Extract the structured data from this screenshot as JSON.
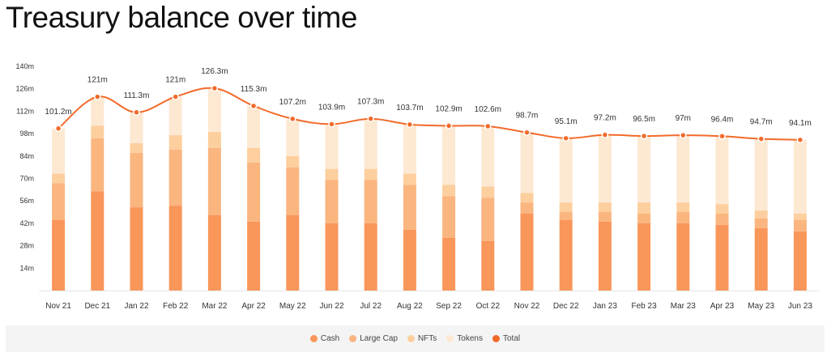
{
  "page": {
    "title": "Treasury balance over time"
  },
  "colors": {
    "cash": "#f9965a",
    "large_cap": "#fbb57f",
    "nfts": "#fdcf9e",
    "tokens": "#fde8d2",
    "total": "#f26a2a"
  },
  "legend": [
    {
      "label": "Cash",
      "color": "#f9965a"
    },
    {
      "label": "Large Cap",
      "color": "#fbb57f"
    },
    {
      "label": "NFTs",
      "color": "#fdcf9e"
    },
    {
      "label": "Tokens",
      "color": "#fde8d2"
    },
    {
      "label": "Total",
      "color": "#f26a2a"
    }
  ],
  "chart_data": {
    "type": "bar",
    "title": "Treasury balance over time",
    "stacked": true,
    "categories": [
      "Nov 21",
      "Dec 21",
      "Jan 22",
      "Feb 22",
      "Mar 22",
      "Apr 22",
      "May 22",
      "Jun 22",
      "Jul 22",
      "Aug 22",
      "Sep 22",
      "Oct 22",
      "Nov 22",
      "Dec 22",
      "Jan 23",
      "Feb 23",
      "Mar 23",
      "Apr 23",
      "May 23",
      "Jun 23"
    ],
    "ylim": [
      0,
      140
    ],
    "yticks": [
      "14m",
      "28m",
      "42m",
      "56m",
      "70m",
      "84m",
      "98m",
      "112m",
      "126m",
      "140m"
    ],
    "legend_position": "bottom",
    "series": [
      {
        "name": "Cash",
        "values": [
          44,
          62,
          52,
          53,
          47,
          43,
          47,
          42,
          42,
          38,
          33,
          31,
          48,
          44,
          43,
          42,
          42,
          41,
          39,
          37
        ]
      },
      {
        "name": "Large Cap",
        "values": [
          23,
          33,
          34,
          35,
          42,
          37,
          30,
          27,
          27,
          28,
          26,
          27,
          7,
          5,
          6,
          6,
          7,
          7,
          6,
          7
        ]
      },
      {
        "name": "NFTs",
        "values": [
          6,
          8,
          6,
          9,
          10,
          9,
          7,
          7,
          7,
          7,
          7,
          7,
          6,
          6,
          6,
          7,
          6,
          6,
          5,
          4
        ]
      },
      {
        "name": "Tokens",
        "values": [
          28.2,
          18,
          19.3,
          24,
          27.3,
          26.3,
          23.2,
          27.9,
          31.3,
          30.7,
          36.9,
          37.6,
          37.7,
          40.1,
          42.2,
          41.5,
          42,
          42.4,
          44.7,
          46.1
        ]
      },
      {
        "name": "Total",
        "type": "line",
        "values": [
          101.2,
          121,
          111.3,
          121,
          126.3,
          115.3,
          107.2,
          103.9,
          107.3,
          103.7,
          102.9,
          102.6,
          98.7,
          95.1,
          97.2,
          96.5,
          97,
          96.4,
          94.7,
          94.1
        ]
      }
    ],
    "data_labels": [
      "101.2m",
      "121m",
      "111.3m",
      "121m",
      "126.3m",
      "115.3m",
      "107.2m",
      "103.9m",
      "107.3m",
      "103.7m",
      "102.9m",
      "102.6m",
      "98.7m",
      "95.1m",
      "97.2m",
      "96.5m",
      "97m",
      "96.4m",
      "94.7m",
      "94.1m"
    ]
  }
}
